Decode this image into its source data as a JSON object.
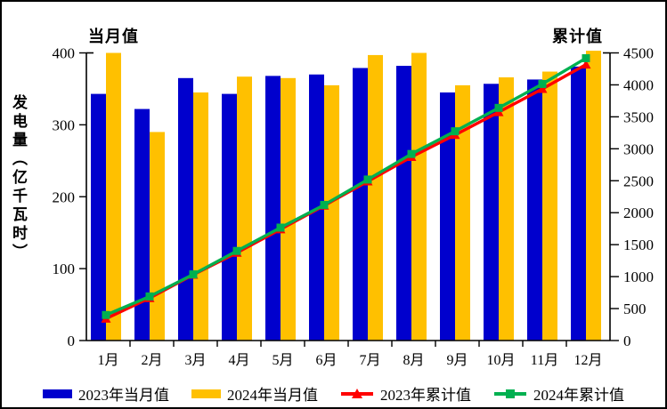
{
  "frame": {
    "left_axis_title": "当月值",
    "right_axis_title": "累计值",
    "y_axis_label": "发电量（亿千瓦时）"
  },
  "colors": {
    "bar_2023": "#0000CD",
    "bar_2024": "#FFC000",
    "line_2023": "#FF0000",
    "line_2024": "#00B050",
    "axis": "#000000",
    "background": "#FFFFFF",
    "border": "#000000"
  },
  "legend": {
    "items": [
      {
        "label": "2023年当月值",
        "swatch": "bar-blue"
      },
      {
        "label": "2024年当月值",
        "swatch": "bar-yellow"
      },
      {
        "label": "2023年累计值",
        "swatch": "line-triangle-red"
      },
      {
        "label": "2024年累计值",
        "swatch": "line-square-green"
      }
    ]
  },
  "chart_data": {
    "type": "combo-bar-line",
    "title": "",
    "categories": [
      "1月",
      "2月",
      "3月",
      "4月",
      "5月",
      "6月",
      "7月",
      "8月",
      "9月",
      "10月",
      "11月",
      "12月"
    ],
    "series": [
      {
        "name": "2023年当月值",
        "type": "bar",
        "axis": "left",
        "color": "#0000CD",
        "marker": "none",
        "values": [
          343,
          322,
          365,
          343,
          368,
          370,
          379,
          382,
          345,
          357,
          363,
          381
        ]
      },
      {
        "name": "2024年当月值",
        "type": "bar",
        "axis": "left",
        "color": "#FFC000",
        "marker": "none",
        "values": [
          400,
          290,
          345,
          367,
          365,
          355,
          397,
          400,
          355,
          366,
          374,
          403
        ]
      },
      {
        "name": "2023年累计值",
        "type": "line",
        "axis": "right",
        "color": "#FF0000",
        "marker": "triangle",
        "values": [
          343,
          665,
          1030,
          1373,
          1741,
          2111,
          2490,
          2872,
          3217,
          3574,
          3937,
          4318
        ]
      },
      {
        "name": "2024年累计值",
        "type": "line",
        "axis": "right",
        "color": "#00B050",
        "marker": "square",
        "values": [
          400,
          690,
          1035,
          1402,
          1767,
          2122,
          2519,
          2919,
          3274,
          3640,
          4014,
          4417
        ]
      }
    ],
    "left_axis": {
      "title": "当月值",
      "min": 0,
      "max": 400,
      "step": 100,
      "ticks": [
        0,
        100,
        200,
        300,
        400
      ]
    },
    "right_axis": {
      "title": "累计值",
      "min": 0,
      "max": 4500,
      "step": 500,
      "ticks": [
        0,
        500,
        1000,
        1500,
        2000,
        2500,
        3000,
        3500,
        4000,
        4500
      ]
    },
    "ylabel": "发电量（亿千瓦时）",
    "grid": false,
    "legend_position": "bottom"
  }
}
